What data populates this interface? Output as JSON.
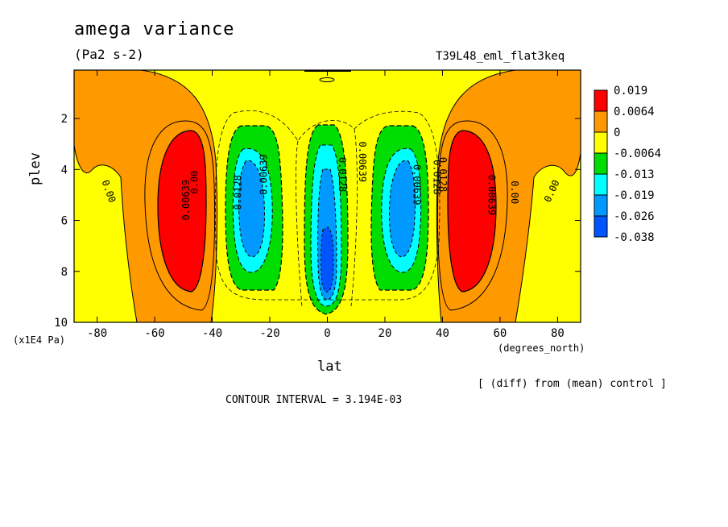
{
  "chart_data": {
    "type": "heatmap",
    "title": "amega variance",
    "units": "(Pa2 s-2)",
    "run_name": "T39L48_eml_flat3keq",
    "xlabel": "lat",
    "xunits": "(degrees_north)",
    "ylabel": "plev",
    "yunits": "(x1E4 Pa)",
    "xlim": [
      -88,
      88
    ],
    "ylim": [
      0.1,
      10
    ],
    "y_inverted": true,
    "x_ticks": [
      -80,
      -60,
      -40,
      -20,
      0,
      20,
      40,
      60,
      80
    ],
    "y_ticks": [
      2,
      4,
      6,
      8,
      10
    ],
    "x_tick_labels": [
      "-80",
      "-60",
      "-40",
      "-20",
      "0",
      "20",
      "40",
      "60",
      "80"
    ],
    "y_tick_labels": [
      "2",
      "4",
      "6",
      "8",
      "10"
    ],
    "colorbar": {
      "labels": [
        "0.019",
        "0.0064",
        "0",
        "-0.0064",
        "-0.013",
        "-0.019",
        "-0.026",
        "-0.038"
      ],
      "colors": [
        "#ff0000",
        "#ff9900",
        "#ffff00",
        "#00dd00",
        "#00ffff",
        "#0099ff",
        "#0055ff"
      ]
    },
    "contour_labels": [
      "0.00",
      "0.00",
      "0.00639",
      "0.00",
      "0.0128",
      "0.00639",
      "0.0128",
      "0.00639",
      "0.00639",
      "0.0128",
      "0.0128",
      "0.00639",
      "0.00"
    ],
    "note": "[ (diff) from (mean) control ]",
    "contour_interval_text": "CONTOUR INTERVAL = 3.194E-03",
    "grid": false,
    "legend_position": "right"
  }
}
